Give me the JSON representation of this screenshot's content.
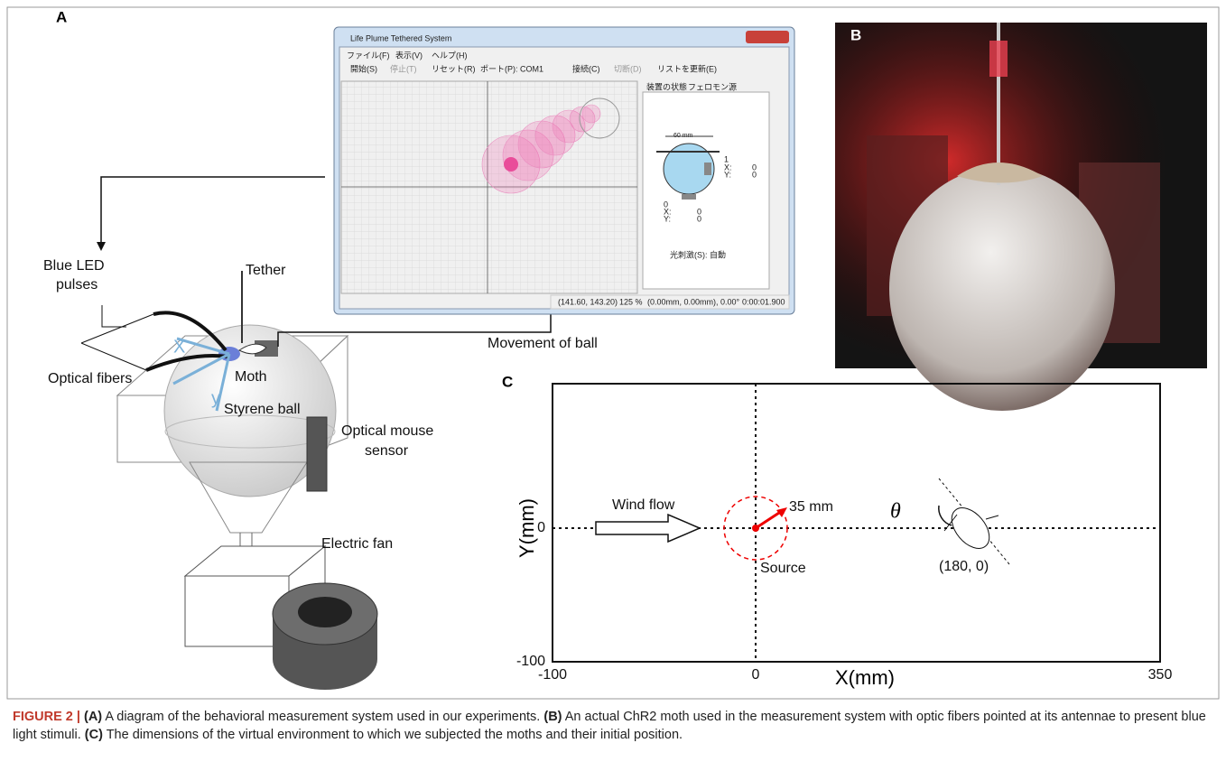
{
  "panel_a": {
    "label": "A",
    "labels": {
      "blue_led": "Blue LED",
      "pulses": "pulses",
      "tether": "Tether",
      "optical_fibers": "Optical fibers",
      "moth": "Moth",
      "x": "X",
      "y": "y",
      "styrene_ball": "Styrene ball",
      "optical_mouse": "Optical mouse",
      "sensor": "sensor",
      "electric_fan": "Electric fan",
      "movement": "Movement of ball"
    },
    "window": {
      "title": "Life Plume Tethered System",
      "menu": [
        "ファイル(F)",
        "表示(V)",
        "ヘルプ(H)"
      ],
      "toolbar": [
        "開始(S)",
        "停止(T)",
        "リセット(R)",
        "ポート(P):",
        "COM1",
        "接続(C)",
        "切断(D)",
        "リストを更新(E)"
      ],
      "tabs": [
        "装置の状態",
        "フェロモン源"
      ],
      "device": {
        "width": "60 mm",
        "sensor1": [
          "1",
          "X:",
          "0",
          "Y:",
          "0"
        ],
        "sensor0": [
          "0",
          "X:",
          "0",
          "Y:",
          "0"
        ],
        "stimulus": "光刺激(S):",
        "mode": "自動"
      },
      "status": [
        "(141.60, 143.20)",
        "125 %",
        "(0.00mm, 0.00mm), 0.00°",
        "0:00:01.900"
      ]
    }
  },
  "panel_b": {
    "label": "B"
  },
  "panel_c": {
    "label": "C",
    "x_label": "X(mm)",
    "y_label": "Y(mm)",
    "x_ticks": [
      "-100",
      "0",
      "350"
    ],
    "y_ticks": [
      "0",
      "-100"
    ],
    "annotations": {
      "wind": "Wind flow",
      "radius": "35 mm",
      "source": "Source",
      "start": "(180, 0)",
      "theta": "θ"
    }
  },
  "caption": {
    "label": "FIGURE 2 |",
    "parts": [
      {
        "tag": "(A)",
        "text": "A diagram of the behavioral measurement system used in our experiments."
      },
      {
        "tag": "(B)",
        "text": "An actual ChR2 moth used in the measurement system with optic fibers pointed at its antennae to present blue light stimuli."
      },
      {
        "tag": "(C)",
        "text": "The dimensions of the virtual environment to which we subjected the moths and their initial position."
      }
    ]
  }
}
